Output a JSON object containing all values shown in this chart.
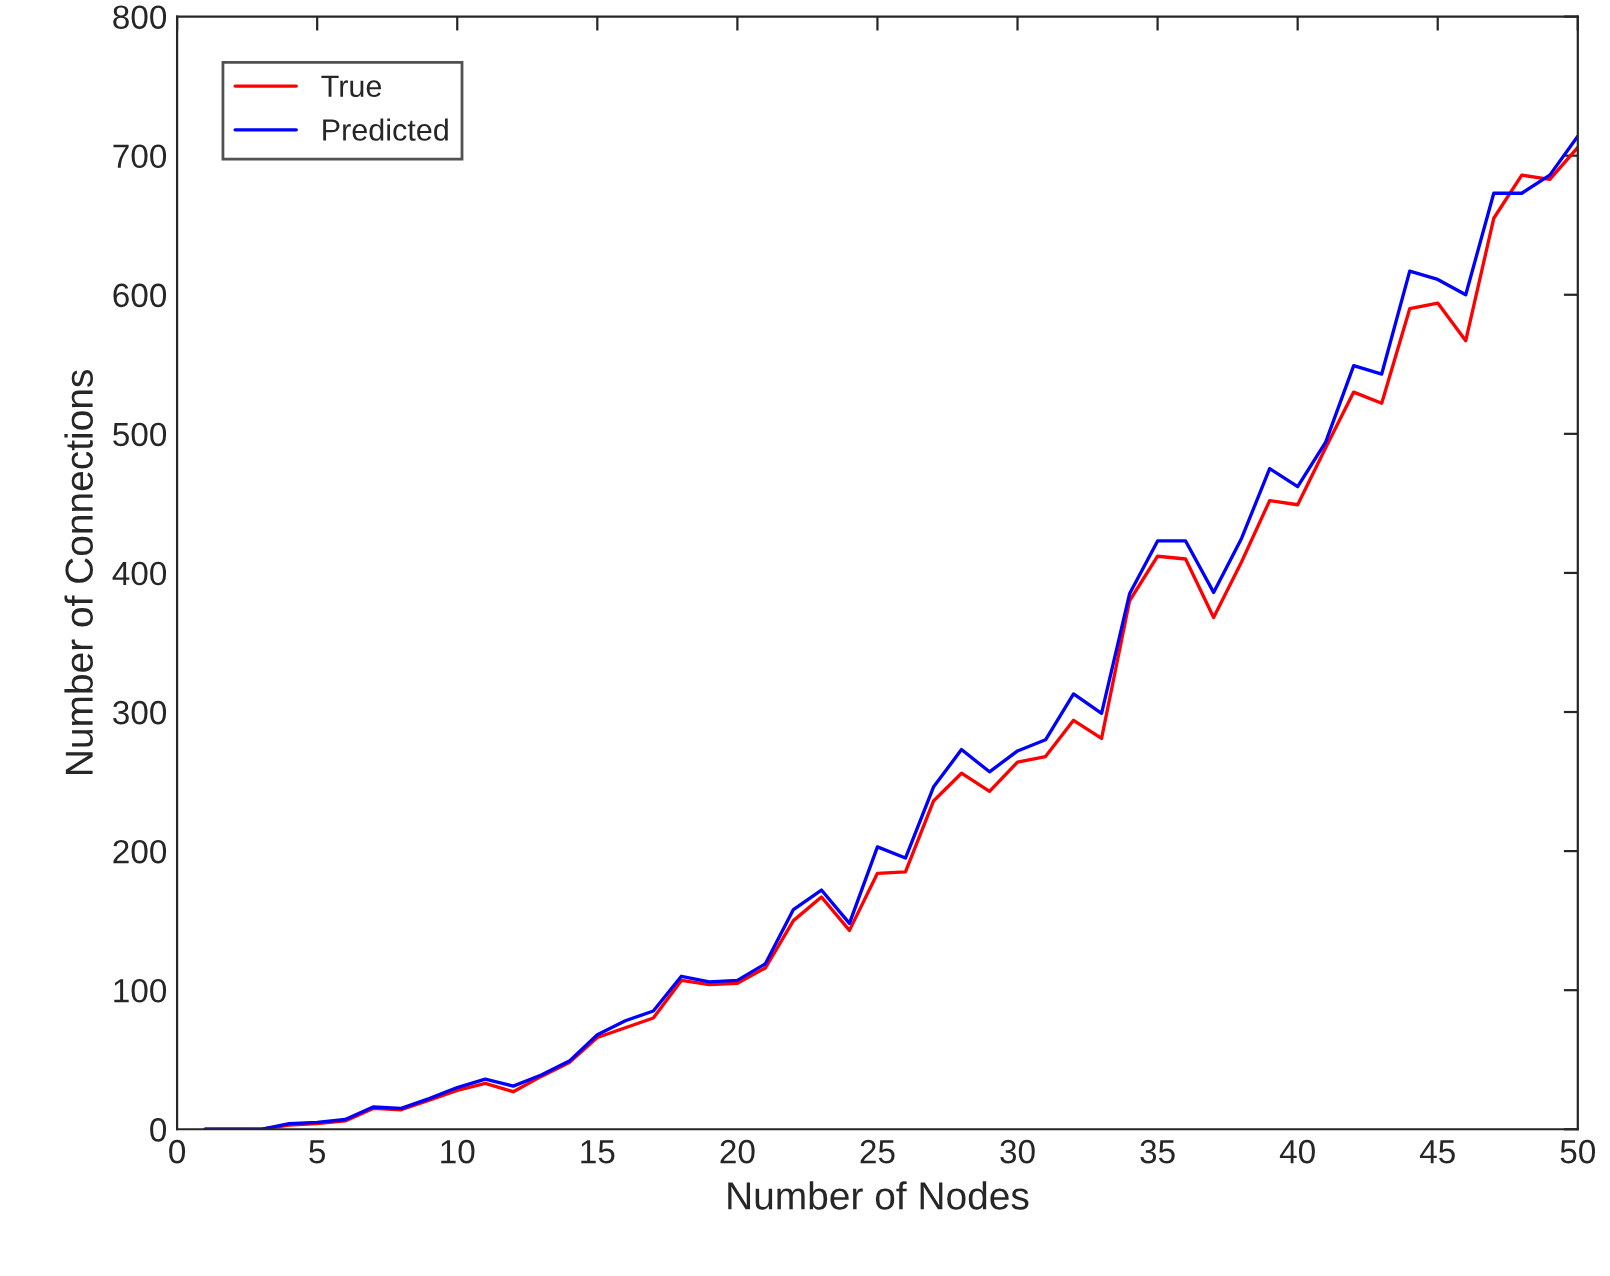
{
  "chart_data": {
    "type": "line",
    "xlabel": "Number of Nodes",
    "ylabel": "Number of Connections",
    "x": [
      1,
      2,
      3,
      4,
      5,
      6,
      7,
      8,
      9,
      10,
      11,
      12,
      13,
      14,
      15,
      16,
      17,
      18,
      19,
      20,
      21,
      22,
      23,
      24,
      25,
      26,
      27,
      28,
      29,
      30,
      31,
      32,
      33,
      34,
      35,
      36,
      37,
      38,
      39,
      40,
      41,
      42,
      43,
      44,
      45,
      46,
      47,
      48,
      49,
      50
    ],
    "series": [
      {
        "name": "True",
        "color": "#ff0000",
        "values": [
          0,
          0,
          0,
          3,
          4,
          6,
          15,
          14,
          21,
          28,
          33,
          27,
          38,
          48,
          66,
          73,
          80,
          107,
          104,
          105,
          116,
          150,
          167,
          143,
          184,
          185,
          236,
          256,
          243,
          264,
          268,
          294,
          281,
          380,
          412,
          410,
          368,
          408,
          452,
          449,
          490,
          530,
          522,
          590,
          594,
          567,
          655,
          686,
          683,
          706
        ]
      },
      {
        "name": "Predicted",
        "color": "#0000ff",
        "values": [
          0,
          0,
          0,
          4,
          5,
          7,
          16,
          15,
          22,
          30,
          36,
          31,
          39,
          49,
          68,
          78,
          85,
          110,
          106,
          107,
          119,
          158,
          172,
          148,
          203,
          195,
          246,
          273,
          257,
          272,
          280,
          313,
          299,
          385,
          423,
          423,
          386,
          425,
          475,
          462,
          494,
          549,
          543,
          617,
          611,
          600,
          673,
          673,
          686,
          714
        ]
      }
    ],
    "xlim": [
      0,
      50
    ],
    "xticks": [
      0,
      5,
      10,
      15,
      20,
      25,
      30,
      35,
      40,
      45,
      50
    ],
    "ylim": [
      0,
      800
    ],
    "yticks": [
      0,
      100,
      200,
      300,
      400,
      500,
      600,
      700,
      800
    ],
    "grid": false,
    "legend": "top left",
    "marker": "none",
    "line_style": "solid"
  }
}
